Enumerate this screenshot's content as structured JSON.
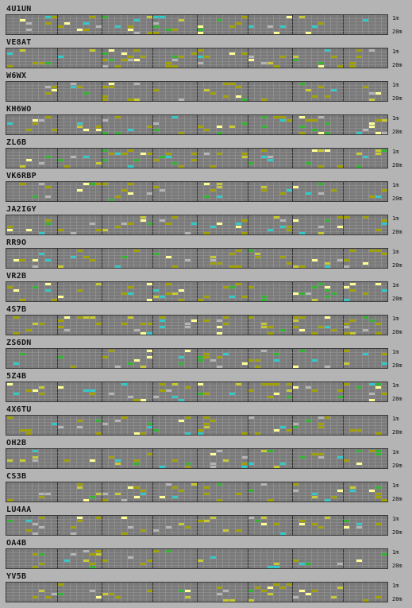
{
  "legend": {
    "top_label": "1m",
    "bottom_label": "20m"
  },
  "colors": {
    "background": "#b4b4b4",
    "cell_empty": "#7a7a7a",
    "grid_line": "#9a9a9a",
    "divider": "#333333",
    "signal_weak": "#a0a000",
    "signal_medium": "#c8c832",
    "signal_green": "#32b432",
    "signal_cyan": "#32c8c8",
    "signal_strong": "#ffff96",
    "signal_gray": "#b4b4b4"
  },
  "beacons": [
    {
      "callsign": "4U1UN"
    },
    {
      "callsign": "VE8AT"
    },
    {
      "callsign": "W6WX"
    },
    {
      "callsign": "KH6WO"
    },
    {
      "callsign": "ZL6B"
    },
    {
      "callsign": "VK6RBP"
    },
    {
      "callsign": "JA2IGY"
    },
    {
      "callsign": "RR9O"
    },
    {
      "callsign": "VR2B"
    },
    {
      "callsign": "4S7B"
    },
    {
      "callsign": "ZS6DN"
    },
    {
      "callsign": "5Z4B"
    },
    {
      "callsign": "4X6TU"
    },
    {
      "callsign": "OH2B"
    },
    {
      "callsign": "CS3B"
    },
    {
      "callsign": "LU4AA"
    },
    {
      "callsign": "OA4B"
    },
    {
      "callsign": "YV5B"
    }
  ]
}
